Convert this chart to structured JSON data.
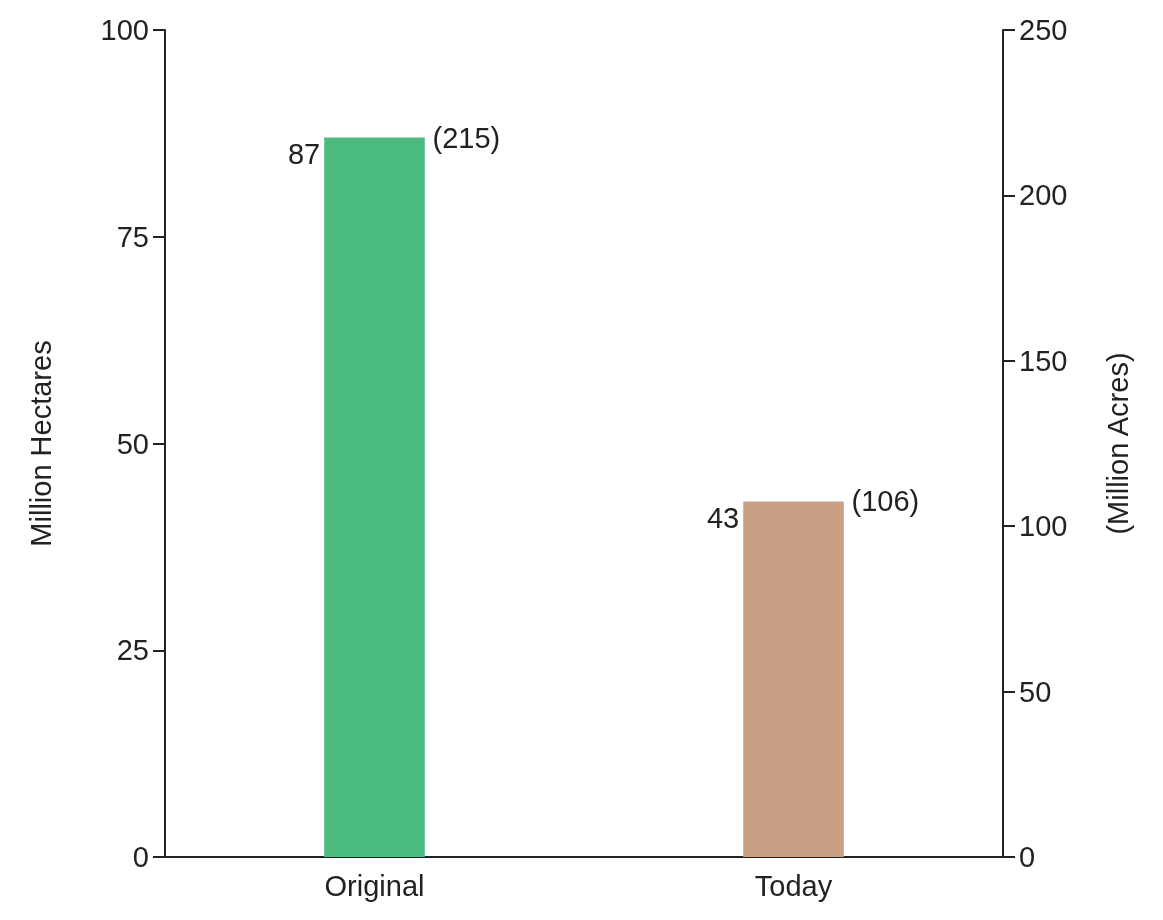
{
  "chart_data": {
    "type": "bar",
    "ylabel": "Million Hectares",
    "y2label": "(Million Acres)",
    "categories": [
      "Original",
      "Today"
    ],
    "values": [
      87,
      43
    ],
    "colors": [
      "#4cbb7f",
      "#c9a084"
    ],
    "ylim": [
      0,
      100
    ],
    "yticks": [
      0,
      25,
      50,
      75,
      100
    ],
    "y2lim": [
      0,
      250
    ],
    "y2ticks": [
      0,
      50,
      100,
      150,
      200,
      250
    ],
    "data_labels": true,
    "grid": false,
    "annotations": [
      {
        "text": "(215)",
        "x": "Original",
        "y": 87
      },
      {
        "text": "(106)",
        "x": "Today",
        "y": 43
      }
    ]
  }
}
